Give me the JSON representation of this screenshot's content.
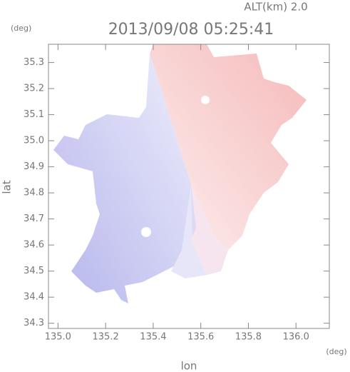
{
  "chart_data": {
    "type": "map",
    "title": "2013/09/08 05:25:41",
    "altitude": "ALT(km) 2.0",
    "x_label": "lon",
    "y_label": "lat",
    "x_unit": "(deg)",
    "y_unit": "(deg)",
    "xlim": [
      134.96,
      136.14
    ],
    "ylim": [
      34.28,
      35.37
    ],
    "xticks": [
      {
        "value": 135,
        "label": "135.0"
      },
      135.2,
      135.4,
      135.6,
      135.8,
      {
        "value": 136,
        "label": "136.0"
      }
    ],
    "yticks": [
      34.3,
      34.4,
      34.5,
      34.6,
      34.7,
      34.8,
      34.9,
      {
        "value": 35,
        "label": "35.0"
      },
      35.1,
      35.2,
      35.3
    ]
  }
}
